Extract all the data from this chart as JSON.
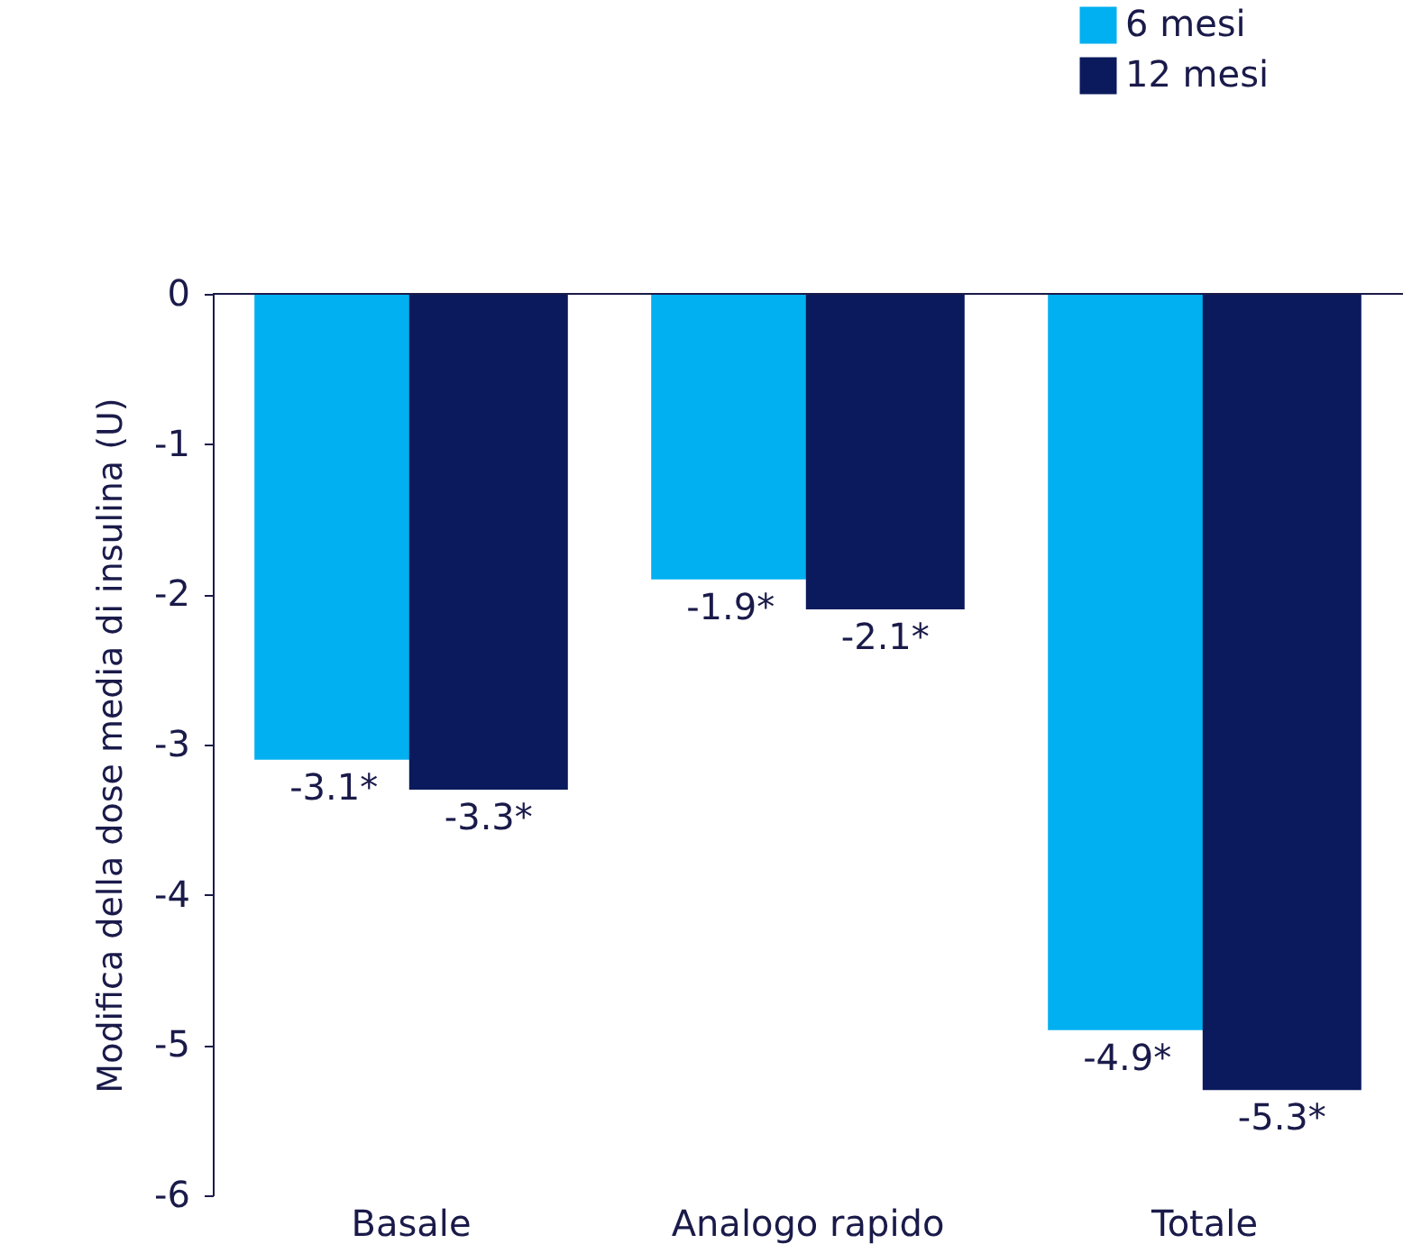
{
  "chart_data": {
    "type": "bar",
    "ylabel": "Modifica della dose media di insulina (U)",
    "categories": [
      "Basale",
      "Analogo rapido",
      "Totale"
    ],
    "series": [
      {
        "name": "6 mesi",
        "color": "#00b0f0",
        "values": [
          -3.1,
          -1.9,
          -4.9
        ],
        "value_labels": [
          "-3.1*",
          "-1.9*",
          "-4.9*"
        ]
      },
      {
        "name": "12 mesi",
        "color": "#0a1a5c",
        "values": [
          -3.3,
          -2.1,
          -5.3
        ],
        "value_labels": [
          "-3.3*",
          "-2.1*",
          "-5.3*"
        ]
      }
    ],
    "ylim": [
      -6,
      0
    ],
    "yticks": [
      0,
      -1,
      -2,
      -3,
      -4,
      -5,
      -6
    ],
    "grid": false,
    "legend": "top right"
  }
}
